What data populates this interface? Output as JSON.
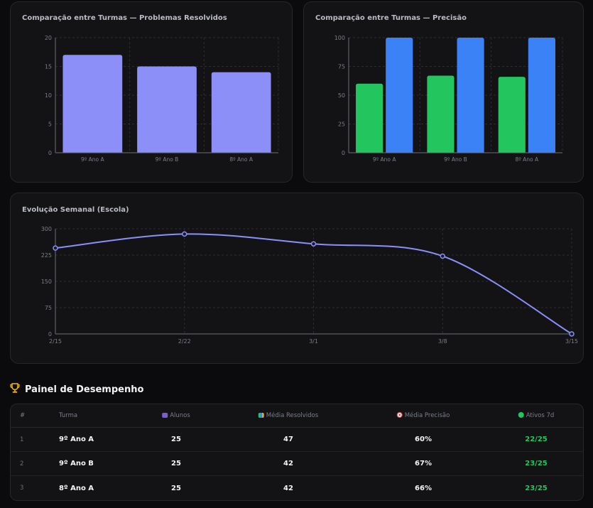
{
  "charts": {
    "resolvidos": {
      "title": "Comparação entre Turmas — Problemas Resolvidos",
      "chart_data": {
        "type": "bar",
        "categories": [
          "9º Ano A",
          "9º Ano B",
          "8º Ano A"
        ],
        "values": [
          17,
          15,
          14
        ],
        "ylim": [
          0,
          20
        ],
        "yticks": [
          "0",
          "5",
          "10",
          "15",
          "20"
        ],
        "grid": true,
        "color": "#8b8ff7"
      }
    },
    "precisao": {
      "title": "Comparação entre Turmas — Precisão",
      "chart_data": {
        "type": "bar",
        "categories": [
          "9º Ano A",
          "9º Ano B",
          "8º Ano A"
        ],
        "series": [
          {
            "values": [
              60,
              67,
              66
            ],
            "color": "#22c55e"
          },
          {
            "values": [
              100,
              100,
              100
            ],
            "color": "#3b82f6"
          }
        ],
        "ylim": [
          0,
          100
        ],
        "yticks": [
          "0",
          "25",
          "50",
          "75",
          "100"
        ],
        "grid": true
      }
    },
    "evolucao": {
      "title": "Evolução Semanal (Escola)",
      "chart_data": {
        "type": "line",
        "x": [
          "2/15",
          "2/22",
          "3/1",
          "3/8",
          "3/15"
        ],
        "values": [
          245,
          285,
          257,
          222,
          0
        ],
        "ylim": [
          0,
          300
        ],
        "yticks": [
          "0",
          "75",
          "150",
          "225",
          "300"
        ],
        "grid": true,
        "color": "#8b8ff7"
      }
    }
  },
  "panel": {
    "trophy_icon": "trophy-icon",
    "title": "Painel de Desempenho",
    "headers": {
      "idx": "#",
      "turma": "Turma",
      "alunos": "Alunos",
      "resolvidos": "Média Resolvidos",
      "precisao": "Média Precisão",
      "ativos": "Ativos 7d"
    },
    "rows": [
      {
        "idx": "1",
        "turma": "9º Ano A",
        "alunos": "25",
        "resolvidos": "47",
        "precisao": "60%",
        "ativos": "22/25"
      },
      {
        "idx": "2",
        "turma": "9º Ano B",
        "alunos": "25",
        "resolvidos": "42",
        "precisao": "67%",
        "ativos": "23/25"
      },
      {
        "idx": "3",
        "turma": "8º Ano A",
        "alunos": "25",
        "resolvidos": "42",
        "precisao": "66%",
        "ativos": "23/25"
      }
    ]
  }
}
